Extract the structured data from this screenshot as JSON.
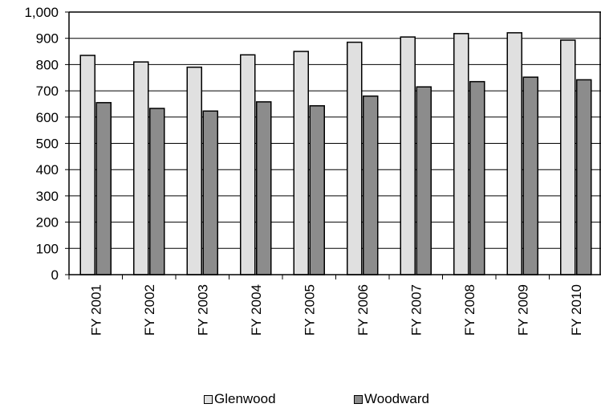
{
  "chart_data": {
    "type": "bar",
    "title": "",
    "xlabel": "",
    "ylabel": "",
    "categories": [
      "FY 2001",
      "FY 2002",
      "FY 2003",
      "FY 2004",
      "FY 2005",
      "FY 2006",
      "FY 2007",
      "FY 2008",
      "FY 2009",
      "FY 2010"
    ],
    "series": [
      {
        "name": "Glenwood",
        "color": "#e0e0e0",
        "values": [
          835,
          810,
          790,
          837,
          850,
          885,
          905,
          918,
          921,
          893
        ]
      },
      {
        "name": "Woodward",
        "color": "#8c8c8c",
        "values": [
          655,
          633,
          623,
          658,
          643,
          680,
          715,
          735,
          752,
          742
        ]
      }
    ],
    "ylim": [
      0,
      1000
    ],
    "yticks": [
      "0",
      "100",
      "200",
      "300",
      "400",
      "500",
      "600",
      "700",
      "800",
      "900",
      "1,000"
    ],
    "grid": true,
    "legend_position": "bottom"
  }
}
